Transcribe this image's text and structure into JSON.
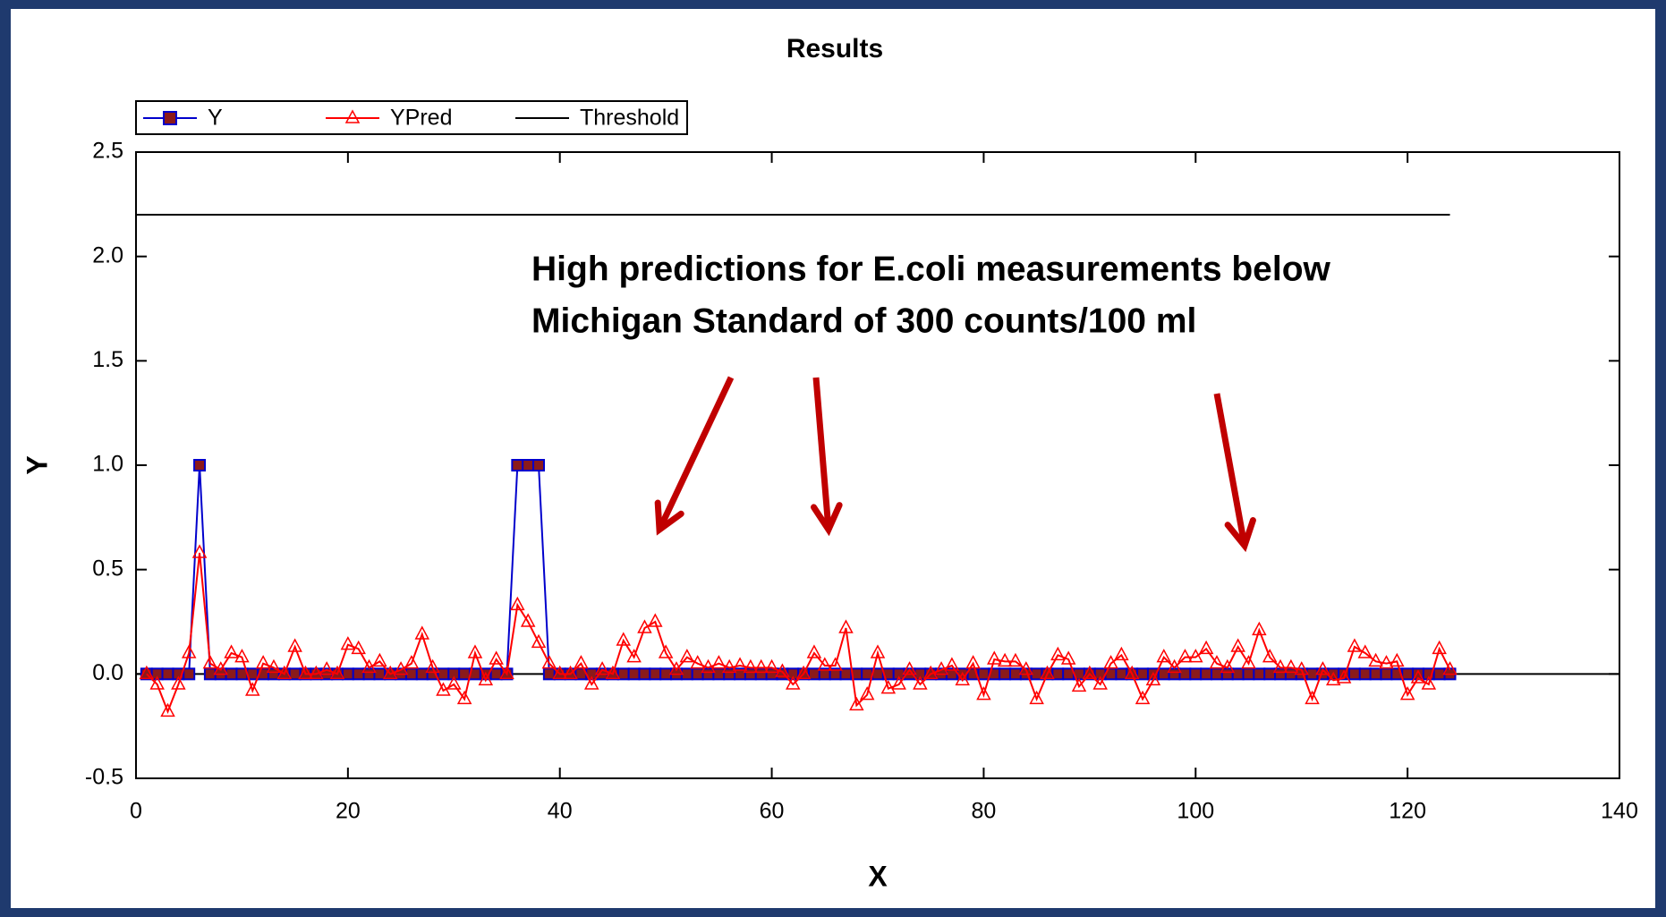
{
  "chart_data": {
    "type": "line",
    "title": "Results",
    "xlabel": "X",
    "ylabel": "Y",
    "annotation": [
      "High predictions for E.coli measurements below",
      "Michigan Standard of 300 counts/100 ml"
    ],
    "x": [
      1,
      2,
      3,
      4,
      5,
      6,
      7,
      8,
      9,
      10,
      11,
      12,
      13,
      14,
      15,
      16,
      17,
      18,
      19,
      20,
      21,
      22,
      23,
      24,
      25,
      26,
      27,
      28,
      29,
      30,
      31,
      32,
      33,
      34,
      35,
      36,
      37,
      38,
      39,
      40,
      41,
      42,
      43,
      44,
      45,
      46,
      47,
      48,
      49,
      50,
      51,
      52,
      53,
      54,
      55,
      56,
      57,
      58,
      59,
      60,
      61,
      62,
      63,
      64,
      65,
      66,
      67,
      68,
      69,
      70,
      71,
      72,
      73,
      74,
      75,
      76,
      77,
      78,
      79,
      80,
      81,
      82,
      83,
      84,
      85,
      86,
      87,
      88,
      89,
      90,
      91,
      92,
      93,
      94,
      95,
      96,
      97,
      98,
      99,
      100,
      101,
      102,
      103,
      104,
      105,
      106,
      107,
      108,
      109,
      110,
      111,
      112,
      113,
      114,
      115,
      116,
      117,
      118,
      119,
      120,
      121,
      122,
      123,
      124
    ],
    "series": [
      {
        "name": "Y",
        "color": "#0000cc",
        "marker": "square",
        "marker_color": "#8b1a1a",
        "values": [
          0,
          0,
          0,
          0,
          0,
          1,
          0,
          0,
          0,
          0,
          0,
          0,
          0,
          0,
          0,
          0,
          0,
          0,
          0,
          0,
          0,
          0,
          0,
          0,
          0,
          0,
          0,
          0,
          0,
          0,
          0,
          0,
          0,
          0,
          0,
          1,
          1,
          1,
          0,
          0,
          0,
          0,
          0,
          0,
          0,
          0,
          0,
          0,
          0,
          0,
          0,
          0,
          0,
          0,
          0,
          0,
          0,
          0,
          0,
          0,
          0,
          0,
          0,
          0,
          0,
          0,
          0,
          0,
          0,
          0,
          0,
          0,
          0,
          0,
          0,
          0,
          0,
          0,
          0,
          0,
          0,
          0,
          0,
          0,
          0,
          0,
          0,
          0,
          0,
          0,
          0,
          0,
          0,
          0,
          0,
          0,
          0,
          0,
          0,
          0,
          0,
          0,
          0,
          0,
          0,
          0,
          0,
          0,
          0,
          0,
          0,
          0,
          0,
          0,
          0,
          0,
          0,
          0,
          0,
          0,
          0,
          0,
          0,
          0
        ]
      },
      {
        "name": "YPred",
        "color": "#ff0000",
        "marker": "triangle",
        "values": [
          0,
          -0.05,
          -0.18,
          -0.05,
          0.1,
          0.58,
          0.05,
          0.02,
          0.1,
          0.08,
          -0.08,
          0.05,
          0.03,
          0,
          0.13,
          0,
          0,
          0.02,
          0,
          0.14,
          0.12,
          0.03,
          0.06,
          0,
          0.02,
          0.05,
          0.19,
          0.03,
          -0.08,
          -0.05,
          -0.12,
          0.1,
          -0.03,
          0.07,
          0,
          0.33,
          0.25,
          0.15,
          0.05,
          0,
          0,
          0.05,
          -0.05,
          0.02,
          0,
          0.16,
          0.08,
          0.22,
          0.25,
          0.1,
          0.02,
          0.08,
          0.05,
          0.03,
          0.05,
          0.03,
          0.04,
          0.03,
          0.03,
          0.03,
          0.01,
          -0.05,
          0,
          0.1,
          0.04,
          0.04,
          0.22,
          -0.15,
          -0.1,
          0.1,
          -0.07,
          -0.05,
          0.02,
          -0.05,
          0,
          0.02,
          0.04,
          -0.03,
          0.05,
          -0.1,
          0.07,
          0.06,
          0.06,
          0.02,
          -0.12,
          0,
          0.09,
          0.07,
          -0.06,
          0,
          -0.05,
          0.05,
          0.09,
          0,
          -0.12,
          -0.03,
          0.08,
          0.03,
          0.08,
          0.08,
          0.12,
          0.05,
          0.03,
          0.13,
          0.05,
          0.21,
          0.08,
          0.03,
          0.03,
          0.02,
          -0.12,
          0.02,
          -0.03,
          -0.02,
          0.13,
          0.1,
          0.06,
          0.05,
          0.06,
          -0.1,
          -0.02,
          -0.05,
          0.12,
          0.02
        ]
      },
      {
        "name": "Threshold",
        "color": "#000000",
        "marker": "none",
        "x": [
          0,
          124
        ],
        "values": [
          2.2,
          2.2
        ]
      }
    ],
    "xlim": [
      0,
      140
    ],
    "xticks": [
      0,
      20,
      40,
      60,
      80,
      100,
      120,
      140
    ],
    "ylim": [
      -0.5,
      2.5
    ],
    "yticks": [
      -0.5,
      {
        "value": 0,
        "label": "0.0"
      },
      0.5,
      {
        "value": 1,
        "label": "1.0"
      },
      1.5,
      {
        "value": 2,
        "label": "2.0"
      },
      2.5
    ],
    "zero_line": true,
    "grid": false,
    "legend": "top-left",
    "annotation_color": "#c00000"
  }
}
